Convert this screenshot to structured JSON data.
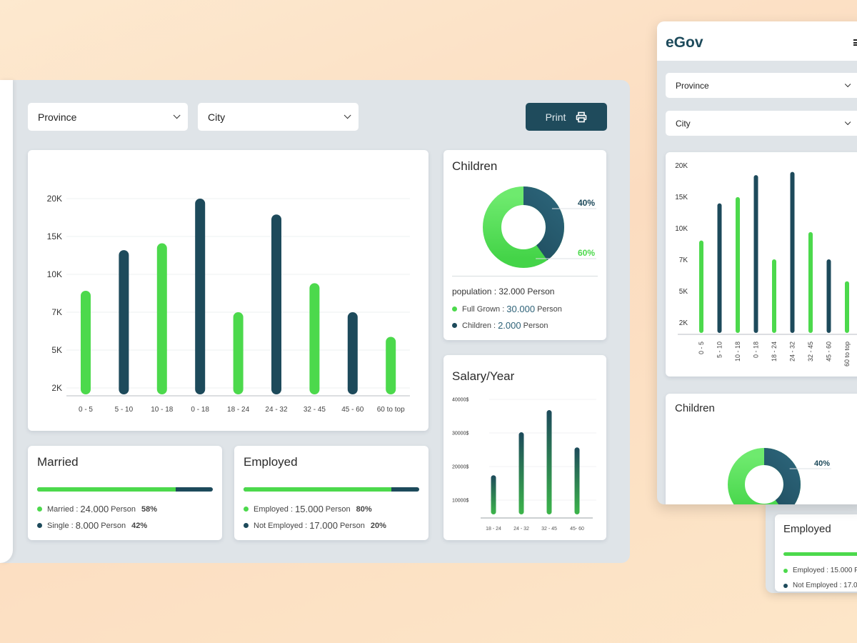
{
  "colors": {
    "green": "#4cd94c",
    "dark": "#1d4a5b",
    "panel": "#dfe4e8"
  },
  "filters": {
    "province": "Province",
    "city": "City"
  },
  "print_button": {
    "label": "Print",
    "icon": "printer-icon"
  },
  "age_chart": {
    "chart_data": {
      "type": "bar",
      "categories": [
        "0 - 5",
        "5 - 10",
        "10 - 18",
        "0 - 18",
        "18 - 24",
        "24 - 32",
        "32 - 45",
        "45 - 60",
        "60 to top"
      ],
      "values": [
        8700,
        13200,
        14100,
        20000,
        7000,
        17900,
        9300,
        7000,
        5700
      ],
      "bar_colors": [
        "green",
        "dark",
        "green",
        "dark",
        "green",
        "dark",
        "green",
        "dark",
        "green"
      ],
      "yticks": [
        {
          "label": "2K",
          "value": 2000
        },
        {
          "label": "5K",
          "value": 5000
        },
        {
          "label": "7K",
          "value": 7000
        },
        {
          "label": "10K",
          "value": 10000
        },
        {
          "label": "15K",
          "value": 15000
        },
        {
          "label": "20K",
          "value": 20000
        }
      ],
      "grid": true
    }
  },
  "children": {
    "title": "Children",
    "chart_data": {
      "type": "pie",
      "slices": [
        {
          "label": "40%",
          "value": 40,
          "color": "dark"
        },
        {
          "label": "60%",
          "value": 60,
          "color": "green"
        }
      ]
    },
    "population": "population : 32.000 Person",
    "items": [
      {
        "label": "Full Grown :",
        "value": "30.000",
        "unit": "Person"
      },
      {
        "label": "Children :",
        "value": "2.000",
        "unit": "Person"
      }
    ]
  },
  "salary": {
    "title": "Salary/Year",
    "chart_data": {
      "type": "bar",
      "categories": [
        "18 - 24",
        "24 - 32",
        "32 - 45",
        "45- 60"
      ],
      "values": [
        17400,
        30200,
        36800,
        25700
      ],
      "yticks": [
        {
          "label": "10000$",
          "value": 10000
        },
        {
          "label": "20000$",
          "value": 20000
        },
        {
          "label": "30000$",
          "value": 30000
        },
        {
          "label": "40000$",
          "value": 40000
        }
      ],
      "grid": true
    }
  },
  "married": {
    "title": "Married",
    "fill_percent": 79,
    "items": [
      {
        "label": "Married :",
        "value": "24.000",
        "unit": "Person",
        "pct": "58%"
      },
      {
        "label": "Single :",
        "value": "8.000",
        "unit": "Person",
        "pct": "42%"
      }
    ]
  },
  "employed": {
    "title": "Employed",
    "fill_percent": 84,
    "items": [
      {
        "label": "Employed :",
        "value": "15.000",
        "unit": "Person",
        "pct": "80%"
      },
      {
        "label": "Not Employed :",
        "value": "17.000",
        "unit": "Person",
        "pct": "20%"
      }
    ]
  },
  "mobile": {
    "logo": "eGov",
    "menu_icon": "hamburger-icon",
    "province": "Province",
    "city": "City",
    "chart_data": {
      "type": "bar",
      "categories": [
        "0 - 5",
        "5 - 10",
        "10 - 18",
        "0 - 18",
        "18 - 24",
        "24 - 32",
        "32 - 45",
        "45 - 60",
        "60 to top"
      ],
      "values": [
        8800,
        13900,
        14900,
        18400,
        7000,
        18900,
        9600,
        7000,
        5600
      ],
      "bar_colors": [
        "green",
        "dark",
        "green",
        "dark",
        "green",
        "dark",
        "green",
        "dark",
        "green"
      ],
      "yticks": [
        {
          "label": "2K",
          "value": 2000
        },
        {
          "label": "5K",
          "value": 5000
        },
        {
          "label": "7K",
          "value": 7000
        },
        {
          "label": "10K",
          "value": 10000
        },
        {
          "label": "15K",
          "value": 15000
        },
        {
          "label": "20K",
          "value": 20000
        }
      ]
    },
    "children_title": "Children",
    "children_slices": [
      "40%",
      "60%"
    ],
    "employed_title": "Employed",
    "employed_items": [
      "Employed : 15.000 Pe",
      "Not Employed : 17.00"
    ]
  }
}
